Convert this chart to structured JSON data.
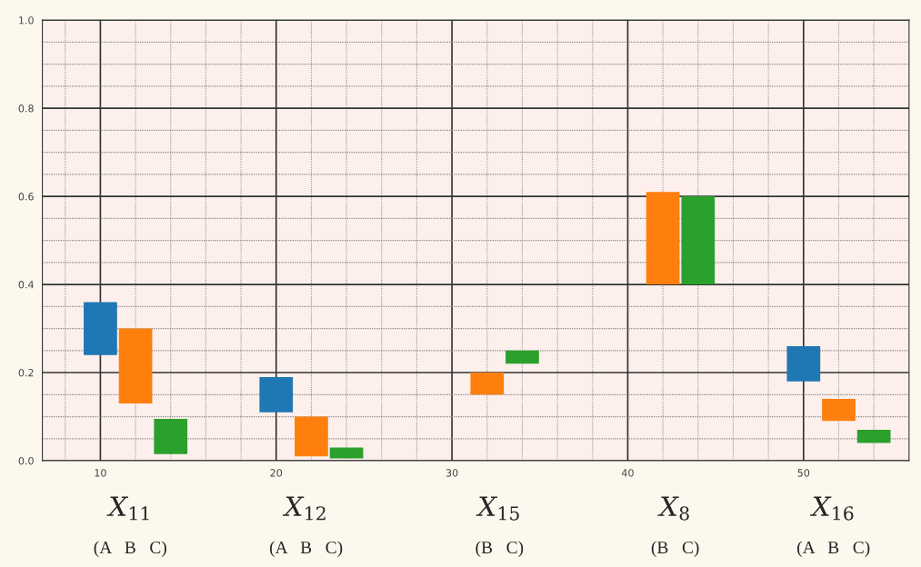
{
  "chart_data": {
    "type": "bar",
    "xlim": [
      6.7,
      56
    ],
    "xticks": [
      {
        "value": 8,
        "label": null
      },
      10,
      {
        "value": 12,
        "label": null
      },
      {
        "value": 14,
        "label": null
      },
      {
        "value": 16,
        "label": null
      },
      {
        "value": 18,
        "label": null
      },
      20,
      {
        "value": 22,
        "label": null
      },
      {
        "value": 24,
        "label": null
      },
      {
        "value": 26,
        "label": null
      },
      {
        "value": 28,
        "label": null
      },
      30,
      {
        "value": 32,
        "label": null
      },
      {
        "value": 34,
        "label": null
      },
      {
        "value": 36,
        "label": null
      },
      {
        "value": 38,
        "label": null
      },
      40,
      {
        "value": 42,
        "label": null
      },
      {
        "value": 44,
        "label": null
      },
      {
        "value": 46,
        "label": null
      },
      {
        "value": 48,
        "label": null
      },
      50,
      {
        "value": 52,
        "label": null
      },
      {
        "value": 54,
        "label": null
      }
    ],
    "ylim": [
      0,
      1
    ],
    "yticks": [
      {
        "value": 0,
        "label": "0.0"
      },
      {
        "value": 0.05,
        "label": null
      },
      {
        "value": 0.1,
        "label": null
      },
      {
        "value": 0.15,
        "label": null
      },
      {
        "value": 0.2,
        "label": "0.2"
      },
      {
        "value": 0.25,
        "label": null
      },
      {
        "value": 0.3,
        "label": null
      },
      {
        "value": 0.35,
        "label": null
      },
      {
        "value": 0.4,
        "label": "0.4"
      },
      {
        "value": 0.45,
        "label": null
      },
      {
        "value": 0.5,
        "label": null
      },
      {
        "value": 0.55,
        "label": null
      },
      {
        "value": 0.6,
        "label": "0.6"
      },
      {
        "value": 0.65,
        "label": null
      },
      {
        "value": 0.7,
        "label": null
      },
      {
        "value": 0.75,
        "label": null
      },
      {
        "value": 0.8,
        "label": "0.8"
      },
      {
        "value": 0.85,
        "label": null
      },
      {
        "value": 0.9,
        "label": null
      },
      {
        "value": 0.95,
        "label": null
      },
      {
        "value": 1,
        "label": "1.0"
      }
    ],
    "grid": true,
    "series": [
      {
        "color": "#1f77b4",
        "x": [
          10,
          20,
          50
        ],
        "base": [
          0.24,
          0.11,
          0.18
        ],
        "values": [
          0.12,
          0.08,
          0.08
        ]
      },
      {
        "color": "#ff7f0e",
        "x": [
          12,
          22,
          32,
          42,
          52
        ],
        "base": [
          0.13,
          0.01,
          0.15,
          0.4,
          0.09
        ],
        "values": [
          0.17,
          0.09,
          0.05,
          0.21,
          0.05
        ]
      },
      {
        "color": "#2ca02c",
        "x": [
          14,
          24,
          34,
          44,
          54
        ],
        "base": [
          0.015,
          0.005,
          0.22,
          0.4,
          0.04
        ],
        "values": [
          0.08,
          0.025,
          0.03,
          0.2,
          0.03
        ]
      }
    ],
    "annotations": [
      "X$_{11}$",
      "(A   B   C)",
      "X$_{12}$",
      "(A   B   C)",
      "X$_{15}$",
      "(B   C)",
      "X$_{8}$",
      "(B   C)",
      "X$_{16}$",
      "(A   B   C)"
    ]
  }
}
